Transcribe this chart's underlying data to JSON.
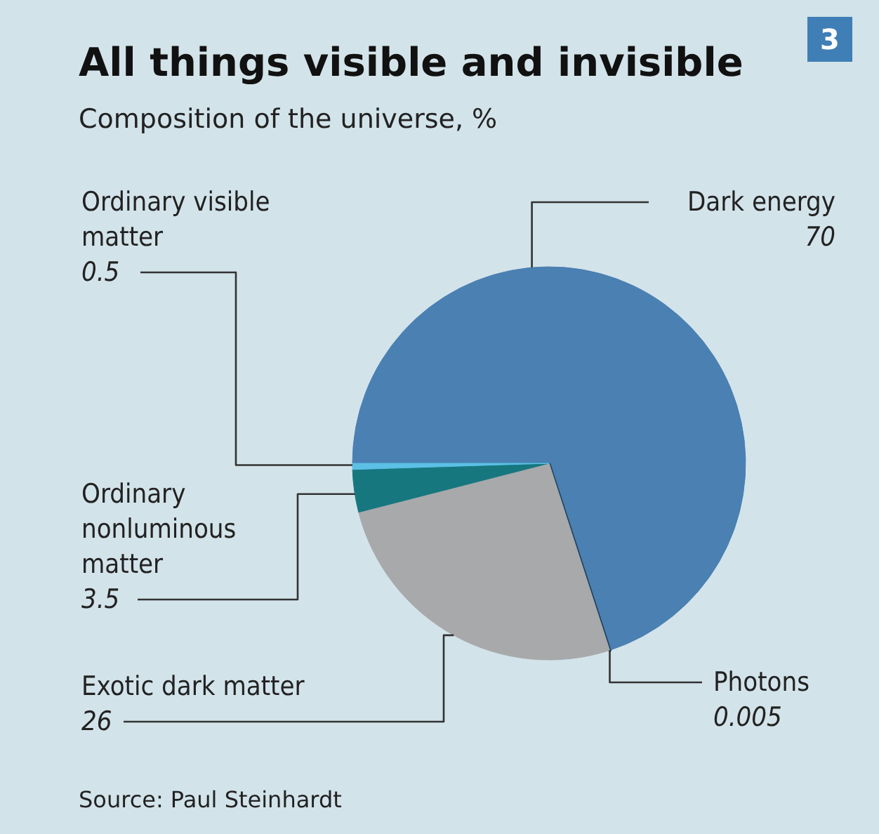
{
  "chart_data": {
    "type": "pie",
    "title": "All things visible and invisible",
    "subtitle": "Composition of the universe, %",
    "categories": [
      "Dark energy",
      "Photons",
      "Exotic dark matter",
      "Ordinary nonluminous matter",
      "Ordinary visible matter"
    ],
    "values": [
      70,
      0.005,
      26,
      3.5,
      0.5
    ],
    "colors": [
      "#4a80b2",
      "#1f3e5c",
      "#a7a9ab",
      "#17777f",
      "#5cc0e6"
    ],
    "data_labels": true,
    "annotations": [
      "Source: Paul Steinhardt",
      "3"
    ]
  }
}
